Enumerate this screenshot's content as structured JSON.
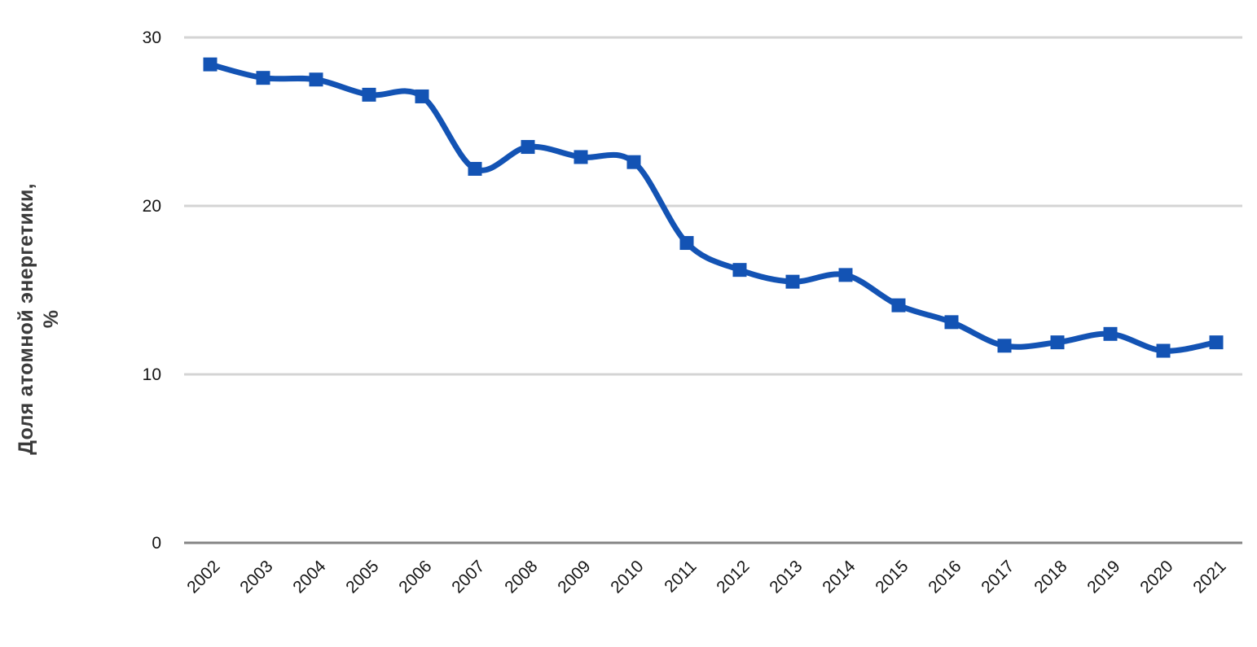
{
  "chart_data": {
    "type": "line",
    "title": "",
    "ylabel_line1": "Доля атомной энергетики,",
    "ylabel_line2": "%",
    "categories": [
      "2002",
      "2003",
      "2004",
      "2005",
      "2006",
      "2007",
      "2008",
      "2009",
      "2010",
      "2011",
      "2012",
      "2013",
      "2014",
      "2015",
      "2016",
      "2017",
      "2018",
      "2019",
      "2020",
      "2021"
    ],
    "series": [
      {
        "name": "Доля атомной энергетики, %",
        "values": [
          28.4,
          27.6,
          27.5,
          26.6,
          26.5,
          22.2,
          23.5,
          22.9,
          22.6,
          17.8,
          16.2,
          15.5,
          15.9,
          14.1,
          13.1,
          11.7,
          11.9,
          12.4,
          11.4,
          11.9
        ]
      }
    ],
    "y_ticks": [
      0,
      10,
      20,
      30
    ],
    "ylim": [
      0,
      30
    ],
    "grid": true,
    "legend_position": "none",
    "line_smooth": true,
    "marker_shape": "square",
    "colors": {
      "line": "#1353b4",
      "gridline": "#d4d4d4",
      "axis_line": "#848484",
      "tick_text": "#161616",
      "axis_title_text": "#3a3a3a"
    }
  }
}
